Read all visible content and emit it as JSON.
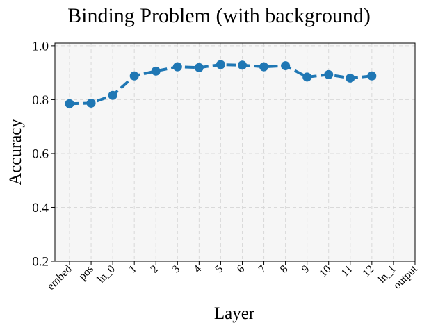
{
  "chart_data": {
    "type": "line",
    "title": "Binding Problem (with background)",
    "xlabel": "Layer",
    "ylabel": "Accuracy",
    "categories": [
      "embed",
      "pos",
      "ln_0",
      "1",
      "2",
      "3",
      "4",
      "5",
      "6",
      "7",
      "8",
      "9",
      "10",
      "11",
      "12",
      "ln_1",
      "output"
    ],
    "series": [
      {
        "values": [
          0.785,
          0.787,
          0.816,
          0.888,
          0.906,
          0.922,
          0.919,
          0.93,
          0.928,
          0.922,
          0.926,
          0.884,
          0.893,
          0.88,
          0.888,
          null,
          null
        ]
      }
    ],
    "ylim": [
      0.2,
      1.01
    ],
    "yticks": [
      "0.2",
      "0.4",
      "0.6",
      "0.8",
      "1.0"
    ],
    "grid": true,
    "colors": {
      "line": "#1f77b4",
      "plot_background": "#f6f6f6",
      "grid": "#d9d9d9"
    }
  }
}
